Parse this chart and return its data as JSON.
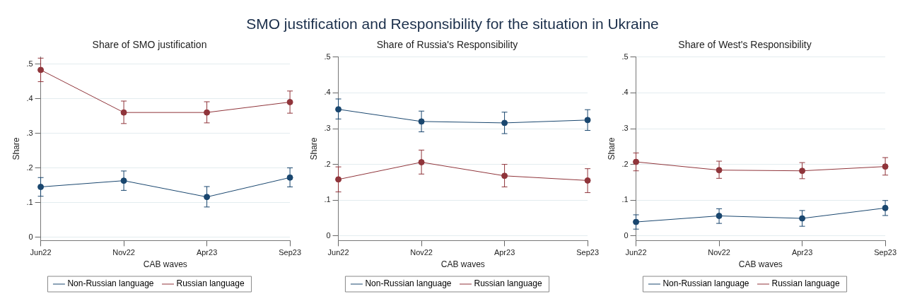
{
  "chart_data": [
    {
      "type": "other",
      "title": "SMO justification and Responsibility for the situation in Ukraine"
    },
    {
      "type": "line",
      "title": "Share of SMO justification",
      "xlabel": "CAB waves",
      "ylabel": "Share",
      "categories": [
        "Jun22",
        "Nov22",
        "Apr23",
        "Sep23"
      ],
      "ylim": [
        -0.01,
        0.52
      ],
      "yticks": [
        {
          "value": 0,
          "label": "0"
        },
        {
          "value": 0.1,
          "label": ".1"
        },
        {
          "value": 0.2,
          "label": ".2"
        },
        {
          "value": 0.3,
          "label": ".3"
        },
        {
          "value": 0.4,
          "label": ".4"
        },
        {
          "value": 0.5,
          "label": ".5"
        }
      ],
      "grid": "y",
      "legend": "bottom",
      "marker": "circle",
      "line_style": "solid",
      "series": [
        {
          "name": "Non-Russian language",
          "color": "#1a476f",
          "values": [
            0.145,
            0.163,
            0.116,
            0.172
          ],
          "errors": [
            [
              0.118,
              0.172
            ],
            [
              0.135,
              0.191
            ],
            [
              0.087,
              0.146
            ],
            [
              0.145,
              0.2
            ]
          ]
        },
        {
          "name": "Russian language",
          "color": "#90353b",
          "values": [
            0.483,
            0.36,
            0.36,
            0.39
          ],
          "errors": [
            [
              0.449,
              0.517
            ],
            [
              0.328,
              0.393
            ],
            [
              0.33,
              0.391
            ],
            [
              0.358,
              0.422
            ]
          ]
        }
      ]
    },
    {
      "type": "line",
      "title": "Share of Russia's Responsibility",
      "xlabel": "CAB waves",
      "ylabel": "Share",
      "categories": [
        "Jun22",
        "Nov22",
        "Apr23",
        "Sep23"
      ],
      "ylim": [
        -0.013,
        0.5
      ],
      "yticks": [
        {
          "value": 0,
          "label": "0"
        },
        {
          "value": 0.1,
          "label": ".1"
        },
        {
          "value": 0.2,
          "label": ".2"
        },
        {
          "value": 0.3,
          "label": ".3"
        },
        {
          "value": 0.4,
          "label": ".4"
        },
        {
          "value": 0.5,
          "label": ".5"
        }
      ],
      "grid": "y",
      "legend": "bottom",
      "marker": "circle",
      "line_style": "solid",
      "series": [
        {
          "name": "Non-Russian language",
          "color": "#1a476f",
          "values": [
            0.354,
            0.32,
            0.316,
            0.324
          ],
          "errors": [
            [
              0.327,
              0.383
            ],
            [
              0.291,
              0.349
            ],
            [
              0.286,
              0.346
            ],
            [
              0.295,
              0.353
            ]
          ]
        },
        {
          "name": "Russian language",
          "color": "#90353b",
          "values": [
            0.158,
            0.206,
            0.168,
            0.155
          ],
          "errors": [
            [
              0.123,
              0.193
            ],
            [
              0.173,
              0.24
            ],
            [
              0.137,
              0.2
            ],
            [
              0.121,
              0.188
            ]
          ]
        }
      ]
    },
    {
      "type": "line",
      "title": "Share of West's Responsibility",
      "xlabel": "CAB waves",
      "ylabel": "Share",
      "categories": [
        "Jun22",
        "Nov22",
        "Apr23",
        "Sep23"
      ],
      "ylim": [
        -0.013,
        0.5
      ],
      "yticks": [
        {
          "value": 0,
          "label": "0"
        },
        {
          "value": 0.1,
          "label": ".1"
        },
        {
          "value": 0.2,
          "label": ".2"
        },
        {
          "value": 0.3,
          "label": ".3"
        },
        {
          "value": 0.4,
          "label": ".4"
        },
        {
          "value": 0.5,
          "label": ".5"
        }
      ],
      "grid": "y",
      "legend": "bottom",
      "marker": "circle",
      "line_style": "solid",
      "series": [
        {
          "name": "Non-Russian language",
          "color": "#1a476f",
          "values": [
            0.039,
            0.056,
            0.049,
            0.078
          ],
          "errors": [
            [
              0.019,
              0.059
            ],
            [
              0.035,
              0.076
            ],
            [
              0.027,
              0.071
            ],
            [
              0.057,
              0.099
            ]
          ]
        },
        {
          "name": "Russian language",
          "color": "#90353b",
          "values": [
            0.207,
            0.184,
            0.182,
            0.194
          ],
          "errors": [
            [
              0.182,
              0.232
            ],
            [
              0.161,
              0.209
            ],
            [
              0.16,
              0.205
            ],
            [
              0.17,
              0.219
            ]
          ]
        }
      ]
    }
  ]
}
